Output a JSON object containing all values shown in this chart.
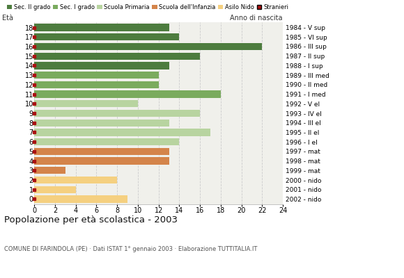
{
  "ages": [
    18,
    17,
    16,
    15,
    14,
    13,
    12,
    11,
    10,
    9,
    8,
    7,
    6,
    5,
    4,
    3,
    2,
    1,
    0
  ],
  "values": [
    13,
    14,
    22,
    16,
    13,
    12,
    12,
    18,
    10,
    16,
    13,
    17,
    14,
    13,
    13,
    3,
    8,
    4,
    9
  ],
  "anno_nascita": [
    "1984 - V sup",
    "1985 - VI sup",
    "1986 - III sup",
    "1987 - II sup",
    "1988 - I sup",
    "1989 - III med",
    "1990 - II med",
    "1991 - I med",
    "1992 - V el",
    "1993 - IV el",
    "1994 - III el",
    "1995 - II el",
    "1996 - I el",
    "1997 - mat",
    "1998 - mat",
    "1999 - mat",
    "2000 - nido",
    "2001 - nido",
    "2002 - nido"
  ],
  "colors": [
    "#4d7c3e",
    "#4d7c3e",
    "#4d7c3e",
    "#4d7c3e",
    "#4d7c3e",
    "#7aab5e",
    "#7aab5e",
    "#7aab5e",
    "#b8d4a0",
    "#b8d4a0",
    "#b8d4a0",
    "#b8d4a0",
    "#b8d4a0",
    "#d4844a",
    "#d4844a",
    "#d4844a",
    "#f5d080",
    "#f5d080",
    "#f5d080"
  ],
  "legend_labels": [
    "Sec. II grado",
    "Sec. I grado",
    "Scuola Primaria",
    "Scuola dell'Infanzia",
    "Asilo Nido",
    "Stranieri"
  ],
  "legend_colors": [
    "#4d7c3e",
    "#7aab5e",
    "#b8d4a0",
    "#d4844a",
    "#f5d080",
    "#cc2222"
  ],
  "title": "Popolazione per età scolastica - 2003",
  "subtitle": "COMUNE DI FARINDOLA (PE) · Dati ISTAT 1° gennaio 2003 · Elaborazione TUTTITALIA.IT",
  "label_eta": "Età",
  "label_anno": "Anno di nascita",
  "xlim": [
    0,
    24
  ],
  "xticks": [
    0,
    2,
    4,
    6,
    8,
    10,
    12,
    14,
    16,
    18,
    20,
    22,
    24
  ],
  "bg_color": "#ffffff",
  "bar_bg_color": "#f0f0eb",
  "grid_color": "#cccccc",
  "stranieri_color": "#aa1111"
}
